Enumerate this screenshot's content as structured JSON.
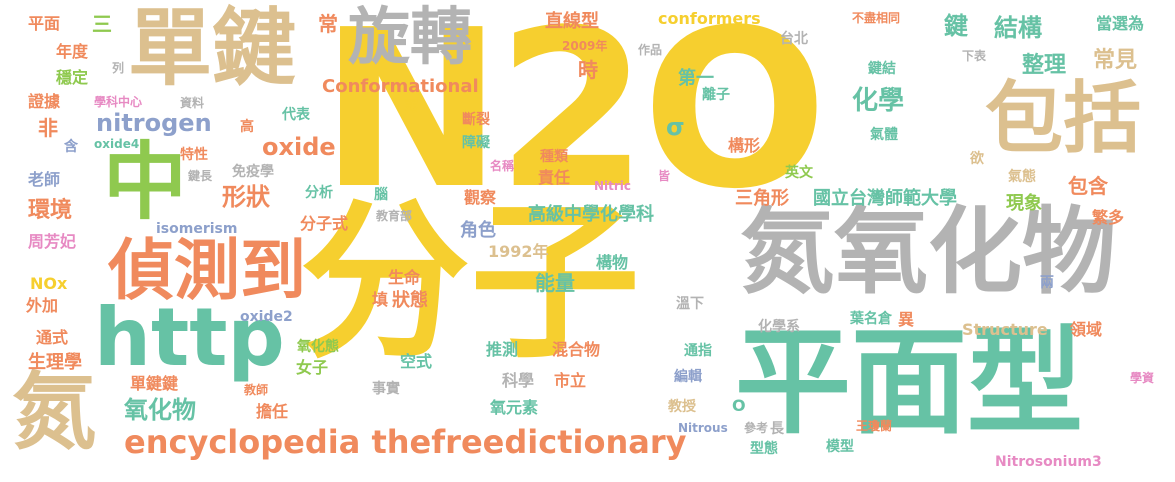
{
  "palette": {
    "yellow": "#f6cf2f",
    "teal": "#66c2a5",
    "orange": "#f08a5d",
    "gray": "#b3b3b3",
    "tan": "#dcc08f",
    "green": "#8fc94f",
    "pink": "#e78ac3",
    "blue": "#8da0cb"
  },
  "words": {
    "w1": "N2O",
    "w2": "分子",
    "w3": "單鍵",
    "w4": "旋轉",
    "w5": "氮氧化物",
    "w6": "平面型",
    "w7": "包括",
    "w8": "中",
    "w9": "偵測到",
    "w10": "http",
    "w11": "氮",
    "w12": "encyclopedia thefreedictionary",
    "w13": "氧化物",
    "w14": "nitrogen",
    "w15": "oxide",
    "w16": "形狀",
    "w17": "環境",
    "w18": "化學",
    "w19": "整理",
    "w20": "結構",
    "w21": "常見",
    "w22": "鍵",
    "w23": "國立台灣師範大學",
    "w24": "高級中學化學科",
    "w25": "三角形",
    "w26": "能量",
    "w27": "包含",
    "w28": "現象",
    "w29": "Conformational",
    "w30": "conformers",
    "w31": "直線型",
    "w32": "第一",
    "w33": "σ",
    "w34": "時",
    "w35": "常",
    "w36": "三",
    "w37": "平面",
    "w38": "年度",
    "w39": "穩定",
    "w40": "證據",
    "w41": "非",
    "w42": "含",
    "w43": "老師",
    "w44": "周芳妃",
    "w45": "NOx",
    "w46": "外加",
    "w47": "通式",
    "w48": "生理學",
    "w49": "單鍵鍵",
    "w50": "教師",
    "w51": "oxide2",
    "w52": "氧化態",
    "w53": "女子",
    "w54": "事實",
    "w55": "擔任",
    "w56": "填",
    "w57": "狀態",
    "w58": "生命",
    "w59": "isomerism",
    "w60": "分子式",
    "w61": "教育部",
    "w62": "1992年",
    "w63": "角色",
    "w64": "構物",
    "w65": "空式",
    "w66": "推測",
    "w67": "混合物",
    "w68": "科學",
    "w69": "市立",
    "w70": "氧元素",
    "w71": "通指",
    "w72": "編輯",
    "w73": "教授",
    "w74": "O",
    "w75": "Nitrous",
    "w76": "參考",
    "w77": "長",
    "w78": "型態",
    "w79": "模型",
    "w80": "化學系",
    "w81": "葉名倉",
    "w82": "異",
    "w83": "Structure",
    "w84": "領域",
    "w85": "王瓊蘭",
    "w86": "Nitrosonium3",
    "w87": "學資",
    "w88": "兩",
    "w89": "繁多",
    "w90": "溫下",
    "w91": "責任",
    "w92": "觀察",
    "w93": "腦",
    "w94": "分析",
    "w95": "免疫學",
    "w96": "特性",
    "w97": "鍵長",
    "w98": "代表",
    "w99": "高",
    "w100": "資料",
    "w101": "學科中心",
    "w102": "列",
    "w103": "作品",
    "w104": "2009年",
    "w105": "台北",
    "w106": "不盡相同",
    "w107": "當選為",
    "w108": "下表",
    "w109": "鍵結",
    "w110": "離子",
    "w111": "氣體",
    "w112": "英文",
    "w113": "氣態",
    "w114": "欲",
    "w115": "構形",
    "w116": "斷裂",
    "w117": "障礙",
    "w118": "名稱",
    "w119": "種類",
    "w120": "皆",
    "w121": "Nitric",
    "w122": "弱",
    "w123": "oxide4"
  }
}
